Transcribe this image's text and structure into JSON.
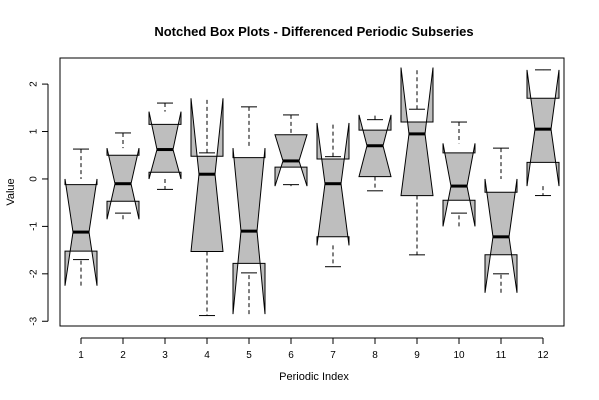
{
  "chart_data": {
    "type": "boxplot",
    "title": "Notched Box Plots - Differenced Periodic Subseries",
    "xlabel": "Periodic Index",
    "ylabel": "Value",
    "categories": [
      "1",
      "2",
      "3",
      "4",
      "5",
      "6",
      "7",
      "8",
      "9",
      "10",
      "11",
      "12"
    ],
    "ylim": [
      -3.1,
      2.55
    ],
    "yticks": [
      -3,
      -2,
      -1,
      0,
      1,
      2
    ],
    "ytick_labels": [
      "-3",
      "-2",
      "-1",
      "0",
      "1",
      "2"
    ],
    "box_fill": "#bebebe",
    "boxes": [
      {
        "label": "1",
        "whisker_low": -1.7,
        "q1": -1.52,
        "median": -1.12,
        "q3": -0.12,
        "whisker_high": 0.63,
        "notch_low": -2.25,
        "notch_high": 0.0
      },
      {
        "label": "2",
        "whisker_low": -0.72,
        "q1": -0.47,
        "median": -0.1,
        "q3": 0.5,
        "whisker_high": 0.97,
        "notch_low": -0.85,
        "notch_high": 0.65
      },
      {
        "label": "3",
        "whisker_low": -0.22,
        "q1": 0.14,
        "median": 0.62,
        "q3": 1.15,
        "whisker_high": 1.6,
        "notch_low": 0.0,
        "notch_high": 1.42
      },
      {
        "label": "4",
        "whisker_low": -2.88,
        "q1": -1.53,
        "median": 0.1,
        "q3": 0.48,
        "whisker_high": 0.55,
        "notch_low": -1.53,
        "notch_high": 1.7
      },
      {
        "label": "5",
        "whisker_low": -1.98,
        "q1": -1.78,
        "median": -1.1,
        "q3": 0.45,
        "whisker_high": 1.52,
        "notch_low": -2.85,
        "notch_high": 0.65
      },
      {
        "label": "6",
        "whisker_low": -0.12,
        "q1": 0.25,
        "median": 0.38,
        "q3": 0.93,
        "whisker_high": 1.35,
        "notch_low": -0.15,
        "notch_high": 0.93
      },
      {
        "label": "7",
        "whisker_low": -1.85,
        "q1": -1.22,
        "median": -0.1,
        "q3": 0.42,
        "whisker_high": 0.47,
        "notch_low": -1.4,
        "notch_high": 1.18
      },
      {
        "label": "8",
        "whisker_low": -0.25,
        "q1": 0.05,
        "median": 0.7,
        "q3": 1.03,
        "whisker_high": 1.25,
        "notch_low": 0.05,
        "notch_high": 1.35
      },
      {
        "label": "9",
        "whisker_low": -1.6,
        "q1": -0.35,
        "median": 0.95,
        "q3": 1.2,
        "whisker_high": 1.47,
        "notch_low": -0.35,
        "notch_high": 2.35
      },
      {
        "label": "10",
        "whisker_low": -0.72,
        "q1": -0.45,
        "median": -0.15,
        "q3": 0.55,
        "whisker_high": 1.2,
        "notch_low": -1.0,
        "notch_high": 0.75
      },
      {
        "label": "11",
        "whisker_low": -2.0,
        "q1": -1.6,
        "median": -1.22,
        "q3": -0.28,
        "whisker_high": 0.65,
        "notch_low": -2.4,
        "notch_high": 0.0
      },
      {
        "label": "12",
        "whisker_low": -0.35,
        "q1": 0.35,
        "median": 1.05,
        "q3": 1.7,
        "whisker_high": 2.3,
        "notch_low": -0.15,
        "notch_high": 2.3
      }
    ]
  }
}
